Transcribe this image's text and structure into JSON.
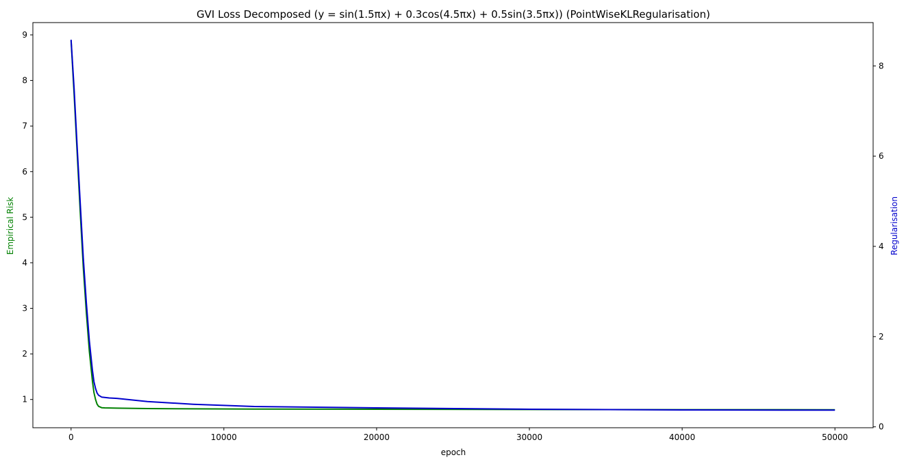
{
  "chart_data": {
    "type": "line",
    "title": "GVI Loss Decomposed (y = sin(1.5πx) + 0.3cos(4.5πx) + 0.5sin(3.5πx)) (PointWiseKLRegularisation)",
    "xlabel": "epoch",
    "ylabel_left": "Empirical Risk",
    "ylabel_right": "Regularisation",
    "xlim": [
      -2500,
      52500
    ],
    "ylim_left": [
      0.38,
      9.27
    ],
    "ylim_right": [
      -0.02,
      8.96
    ],
    "x_ticks": [
      0,
      10000,
      20000,
      30000,
      40000,
      50000
    ],
    "y_left_ticks": [
      1,
      2,
      3,
      4,
      5,
      6,
      7,
      8,
      9
    ],
    "y_right_ticks": [
      0,
      2,
      4,
      6,
      8
    ],
    "grid": false,
    "legend": "none",
    "series": [
      {
        "name": "Empirical Risk",
        "axis": "left",
        "color": "#008000",
        "x": [
          0,
          200,
          400,
          600,
          800,
          1000,
          1200,
          1400,
          1500,
          1600,
          1700,
          1800,
          2000,
          2200,
          3000,
          5000,
          8000,
          12000,
          20000,
          30000,
          40000,
          50000
        ],
        "y": [
          8.87,
          7.7,
          6.4,
          5.1,
          3.9,
          2.9,
          2.05,
          1.4,
          1.15,
          1.0,
          0.9,
          0.85,
          0.82,
          0.815,
          0.81,
          0.8,
          0.795,
          0.79,
          0.785,
          0.78,
          0.777,
          0.775
        ]
      },
      {
        "name": "Regularisation",
        "axis": "right",
        "color": "#0000cc",
        "x": [
          0,
          200,
          400,
          600,
          800,
          1000,
          1200,
          1400,
          1500,
          1600,
          1700,
          1800,
          2000,
          2500,
          3000,
          5000,
          8000,
          12000,
          20000,
          30000,
          40000,
          50000
        ],
        "y": [
          8.58,
          7.5,
          6.2,
          4.95,
          3.75,
          2.75,
          1.9,
          1.25,
          1.0,
          0.85,
          0.75,
          0.7,
          0.66,
          0.64,
          0.63,
          0.56,
          0.5,
          0.45,
          0.42,
          0.39,
          0.375,
          0.37
        ]
      }
    ]
  }
}
